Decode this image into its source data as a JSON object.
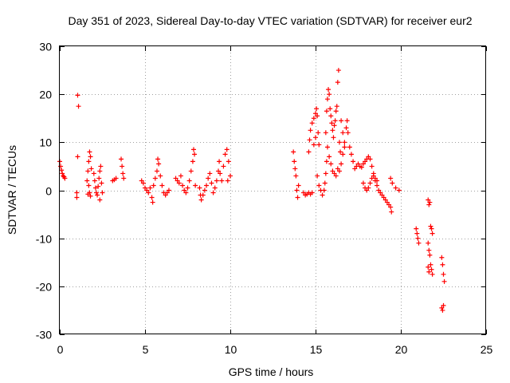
{
  "chart_data": {
    "type": "scatter",
    "title": "Day 351 of 2023, Sidereal Day-to-day VTEC variation (SDTVAR) for receiver eur2",
    "xlabel": "GPS time / hours",
    "ylabel": "SDTVAR / TECUs",
    "xlim": [
      0,
      25
    ],
    "ylim": [
      -30,
      30
    ],
    "xticks": [
      "0",
      "5",
      "10",
      "15",
      "20",
      "25"
    ],
    "yticks": [
      "30",
      "20",
      "10",
      "0",
      "-10",
      "-20",
      "-30"
    ],
    "grid": true,
    "marker": "+",
    "color": "#ff0000",
    "series": [
      {
        "name": "eur2",
        "points": [
          [
            0.0,
            6.0
          ],
          [
            0.05,
            5.0
          ],
          [
            0.1,
            4.2
          ],
          [
            0.15,
            3.5
          ],
          [
            0.2,
            3.0
          ],
          [
            0.25,
            2.8
          ],
          [
            0.3,
            2.5
          ],
          [
            1.05,
            19.8
          ],
          [
            1.1,
            17.5
          ],
          [
            1.05,
            7.0
          ],
          [
            1.0,
            -0.5
          ],
          [
            1.0,
            -1.5
          ],
          [
            1.6,
            2.0
          ],
          [
            1.65,
            4.0
          ],
          [
            1.7,
            6.0
          ],
          [
            1.75,
            8.0
          ],
          [
            1.8,
            7.0
          ],
          [
            1.85,
            4.5
          ],
          [
            1.7,
            1.0
          ],
          [
            1.75,
            -0.5
          ],
          [
            1.8,
            -1.2
          ],
          [
            1.65,
            -0.8
          ],
          [
            2.0,
            3.5
          ],
          [
            2.05,
            2.0
          ],
          [
            2.1,
            0.5
          ],
          [
            2.15,
            -0.5
          ],
          [
            2.2,
            -1.0
          ],
          [
            2.25,
            0.8
          ],
          [
            2.3,
            2.5
          ],
          [
            2.35,
            4.0
          ],
          [
            2.4,
            5.0
          ],
          [
            2.45,
            1.5
          ],
          [
            2.5,
            -0.5
          ],
          [
            2.35,
            -2.0
          ],
          [
            3.1,
            2.0
          ],
          [
            3.2,
            2.2
          ],
          [
            3.3,
            2.5
          ],
          [
            3.6,
            6.5
          ],
          [
            3.65,
            5.0
          ],
          [
            3.7,
            3.5
          ],
          [
            3.75,
            2.5
          ],
          [
            4.8,
            2.0
          ],
          [
            4.9,
            1.5
          ],
          [
            5.0,
            0.5
          ],
          [
            5.1,
            0.0
          ],
          [
            5.2,
            -0.5
          ],
          [
            5.3,
            0.5
          ],
          [
            5.4,
            -1.5
          ],
          [
            5.45,
            -2.5
          ],
          [
            5.5,
            1.0
          ],
          [
            5.6,
            2.5
          ],
          [
            5.7,
            4.0
          ],
          [
            5.75,
            6.5
          ],
          [
            5.8,
            5.5
          ],
          [
            5.9,
            3.0
          ],
          [
            6.0,
            1.0
          ],
          [
            6.1,
            -0.5
          ],
          [
            6.2,
            -1.0
          ],
          [
            6.3,
            -0.5
          ],
          [
            6.4,
            0.0
          ],
          [
            6.8,
            2.5
          ],
          [
            6.9,
            2.0
          ],
          [
            7.0,
            1.5
          ],
          [
            7.1,
            3.0
          ],
          [
            7.2,
            1.0
          ],
          [
            7.3,
            0.0
          ],
          [
            7.4,
            -0.5
          ],
          [
            7.5,
            0.5
          ],
          [
            7.6,
            2.0
          ],
          [
            7.7,
            4.0
          ],
          [
            7.8,
            6.0
          ],
          [
            7.85,
            8.5
          ],
          [
            7.9,
            7.5
          ],
          [
            7.95,
            1.0
          ],
          [
            8.2,
            0.5
          ],
          [
            8.25,
            -1.0
          ],
          [
            8.3,
            -2.0
          ],
          [
            8.4,
            -1.0
          ],
          [
            8.5,
            0.0
          ],
          [
            8.6,
            1.0
          ],
          [
            8.7,
            2.5
          ],
          [
            8.8,
            3.5
          ],
          [
            8.9,
            1.5
          ],
          [
            9.0,
            -0.5
          ],
          [
            9.1,
            0.5
          ],
          [
            9.2,
            2.0
          ],
          [
            9.3,
            4.0
          ],
          [
            9.35,
            6.0
          ],
          [
            9.4,
            3.5
          ],
          [
            9.5,
            2.0
          ],
          [
            9.6,
            5.0
          ],
          [
            9.7,
            7.5
          ],
          [
            9.8,
            8.5
          ],
          [
            9.9,
            6.0
          ],
          [
            10.0,
            3.0
          ],
          [
            9.85,
            2.0
          ],
          [
            13.7,
            8.0
          ],
          [
            13.75,
            6.0
          ],
          [
            13.8,
            4.5
          ],
          [
            13.85,
            3.0
          ],
          [
            13.9,
            0.0
          ],
          [
            13.95,
            -1.5
          ],
          [
            14.0,
            1.0
          ],
          [
            14.3,
            -0.5
          ],
          [
            14.4,
            -1.0
          ],
          [
            14.5,
            -0.8
          ],
          [
            14.6,
            -0.5
          ],
          [
            14.7,
            -0.8
          ],
          [
            14.8,
            -0.5
          ],
          [
            14.6,
            8.0
          ],
          [
            14.65,
            10.5
          ],
          [
            14.7,
            12.5
          ],
          [
            14.8,
            14.0
          ],
          [
            14.9,
            15.0
          ],
          [
            15.0,
            16.0
          ],
          [
            15.05,
            17.0
          ],
          [
            15.1,
            15.5
          ],
          [
            15.15,
            12.0
          ],
          [
            15.2,
            9.5
          ],
          [
            15.0,
            11.0
          ],
          [
            14.9,
            9.5
          ],
          [
            15.1,
            3.0
          ],
          [
            15.2,
            1.0
          ],
          [
            15.3,
            0.0
          ],
          [
            15.4,
            -1.0
          ],
          [
            15.5,
            0.0
          ],
          [
            15.55,
            1.5
          ],
          [
            15.6,
            3.5
          ],
          [
            15.65,
            6.0
          ],
          [
            15.7,
            9.0
          ],
          [
            15.6,
            12.0
          ],
          [
            15.65,
            16.5
          ],
          [
            15.7,
            19.0
          ],
          [
            15.75,
            21.0
          ],
          [
            15.8,
            20.0
          ],
          [
            15.85,
            17.0
          ],
          [
            15.9,
            15.5
          ],
          [
            15.95,
            14.0
          ],
          [
            16.0,
            12.5
          ],
          [
            16.05,
            11.0
          ],
          [
            16.1,
            13.5
          ],
          [
            16.15,
            14.5
          ],
          [
            16.2,
            16.5
          ],
          [
            16.25,
            17.5
          ],
          [
            16.3,
            22.5
          ],
          [
            16.35,
            25.0
          ],
          [
            16.4,
            10.0
          ],
          [
            16.45,
            8.0
          ],
          [
            15.8,
            7.0
          ],
          [
            15.9,
            5.5
          ],
          [
            16.0,
            4.0
          ],
          [
            16.1,
            3.5
          ],
          [
            16.2,
            3.0
          ],
          [
            16.3,
            4.5
          ],
          [
            16.4,
            4.0
          ],
          [
            16.5,
            5.5
          ],
          [
            16.6,
            7.5
          ],
          [
            16.7,
            10.0
          ],
          [
            16.8,
            13.0
          ],
          [
            16.85,
            14.5
          ],
          [
            16.9,
            12.0
          ],
          [
            17.0,
            9.0
          ],
          [
            17.1,
            7.5
          ],
          [
            17.2,
            6.0
          ],
          [
            16.5,
            14.5
          ],
          [
            16.6,
            12.0
          ],
          [
            16.7,
            9.0
          ],
          [
            17.3,
            4.5
          ],
          [
            17.4,
            5.0
          ],
          [
            17.5,
            5.5
          ],
          [
            17.6,
            5.0
          ],
          [
            17.7,
            4.8
          ],
          [
            17.8,
            5.5
          ],
          [
            17.9,
            6.0
          ],
          [
            18.0,
            6.5
          ],
          [
            18.1,
            7.0
          ],
          [
            18.2,
            6.5
          ],
          [
            18.3,
            5.0
          ],
          [
            18.4,
            3.5
          ],
          [
            18.5,
            2.5
          ],
          [
            18.6,
            2.0
          ],
          [
            17.8,
            1.5
          ],
          [
            17.9,
            0.5
          ],
          [
            18.0,
            0.0
          ],
          [
            18.1,
            0.5
          ],
          [
            18.2,
            1.5
          ],
          [
            18.3,
            2.5
          ],
          [
            18.4,
            3.0
          ],
          [
            18.5,
            2.0
          ],
          [
            18.6,
            1.0
          ],
          [
            18.7,
            0.0
          ],
          [
            18.8,
            -0.5
          ],
          [
            18.9,
            -1.0
          ],
          [
            19.0,
            -1.5
          ],
          [
            19.1,
            -2.0
          ],
          [
            19.2,
            -2.5
          ],
          [
            19.3,
            -3.0
          ],
          [
            19.4,
            -3.5
          ],
          [
            19.45,
            -4.5
          ],
          [
            19.4,
            2.5
          ],
          [
            19.5,
            1.5
          ],
          [
            19.7,
            0.5
          ],
          [
            19.9,
            0.0
          ],
          [
            20.9,
            -8.0
          ],
          [
            20.95,
            -9.0
          ],
          [
            21.0,
            -10.0
          ],
          [
            21.05,
            -11.0
          ],
          [
            21.6,
            -2.0
          ],
          [
            21.65,
            -3.0
          ],
          [
            21.7,
            -2.5
          ],
          [
            21.75,
            -7.5
          ],
          [
            21.8,
            -8.0
          ],
          [
            21.85,
            -9.0
          ],
          [
            21.6,
            -11.0
          ],
          [
            21.65,
            -12.5
          ],
          [
            21.7,
            -13.5
          ],
          [
            21.75,
            -15.5
          ],
          [
            21.8,
            -16.5
          ],
          [
            21.85,
            -17.5
          ],
          [
            21.6,
            -16.0
          ],
          [
            21.65,
            -17.0
          ],
          [
            22.4,
            -14.0
          ],
          [
            22.45,
            -15.5
          ],
          [
            22.5,
            -17.5
          ],
          [
            22.55,
            -19.0
          ],
          [
            22.4,
            -24.5
          ],
          [
            22.45,
            -25.0
          ],
          [
            22.5,
            -24.0
          ]
        ]
      }
    ]
  }
}
